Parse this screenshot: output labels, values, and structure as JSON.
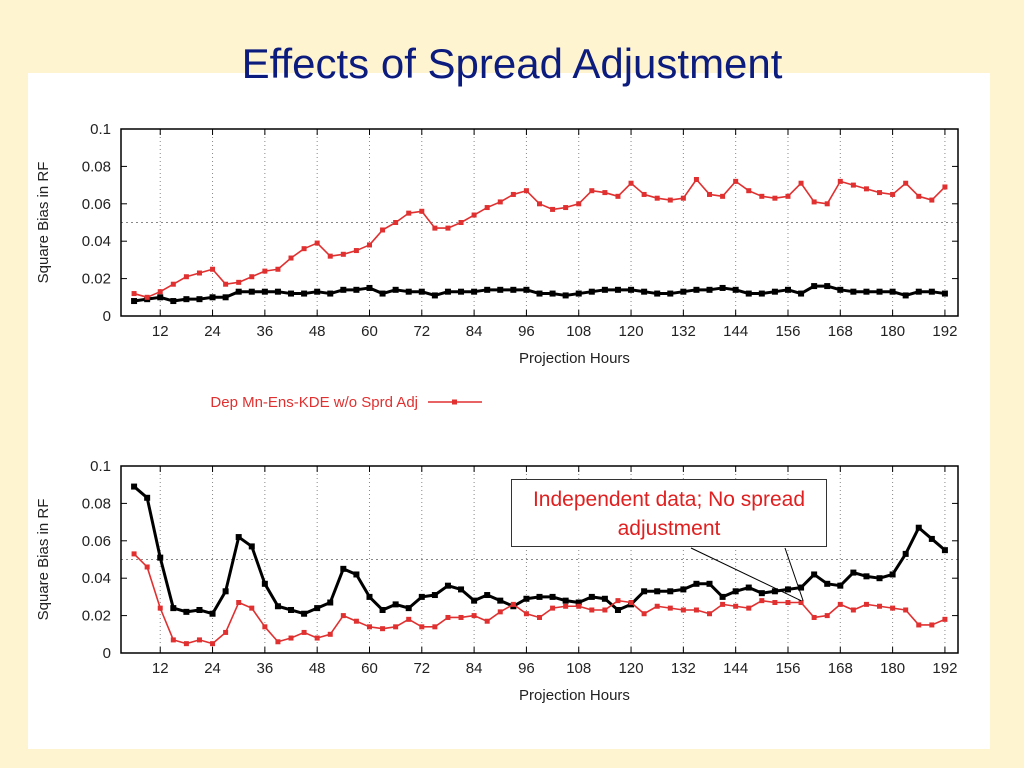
{
  "slide": {
    "title": "Effects of Spread Adjustment"
  },
  "colors": {
    "background": "#fff4d0",
    "title": "#0b1b7e",
    "black_series": "#000000",
    "red_series": "#e03030"
  },
  "chart_data": [
    {
      "type": "line",
      "xlabel": "Projection Hours",
      "ylabel": "Square Bias in RF",
      "xlim": [
        3,
        195
      ],
      "ylim": [
        0,
        0.1
      ],
      "xticks": [
        12,
        24,
        36,
        48,
        60,
        72,
        84,
        96,
        108,
        120,
        132,
        144,
        156,
        168,
        180,
        192
      ],
      "yticks": [
        0,
        0.02,
        0.04,
        0.06,
        0.08,
        0.1
      ],
      "ytick_labels": [
        "0",
        "0.02",
        "0.04",
        "0.06",
        "0.08",
        "0.1"
      ],
      "reference_line": 0.05,
      "legend_placement": "below",
      "series": [
        {
          "color": "#000000",
          "x": [
            6,
            9,
            12,
            15,
            18,
            21,
            24,
            27,
            30,
            33,
            36,
            39,
            42,
            45,
            48,
            51,
            54,
            57,
            60,
            63,
            66,
            69,
            72,
            75,
            78,
            81,
            84,
            87,
            90,
            93,
            96,
            99,
            102,
            105,
            108,
            111,
            114,
            117,
            120,
            123,
            126,
            129,
            132,
            135,
            138,
            141,
            144,
            147,
            150,
            153,
            156,
            159,
            162,
            165,
            168,
            171,
            174,
            177,
            180,
            183,
            186,
            189,
            192
          ],
          "y": [
            0.008,
            0.009,
            0.01,
            0.008,
            0.009,
            0.009,
            0.01,
            0.01,
            0.013,
            0.013,
            0.013,
            0.013,
            0.012,
            0.012,
            0.013,
            0.012,
            0.014,
            0.014,
            0.015,
            0.012,
            0.014,
            0.013,
            0.013,
            0.011,
            0.013,
            0.013,
            0.013,
            0.014,
            0.014,
            0.014,
            0.014,
            0.012,
            0.012,
            0.011,
            0.012,
            0.013,
            0.014,
            0.014,
            0.014,
            0.013,
            0.012,
            0.012,
            0.013,
            0.014,
            0.014,
            0.015,
            0.014,
            0.012,
            0.012,
            0.013,
            0.014,
            0.012,
            0.016,
            0.016,
            0.014,
            0.013,
            0.013,
            0.013,
            0.013,
            0.011,
            0.013,
            0.013,
            0.012
          ]
        },
        {
          "name": "Dep Mn-Ens-KDE w/o Sprd Adj",
          "color": "#e03030",
          "x": [
            6,
            9,
            12,
            15,
            18,
            21,
            24,
            27,
            30,
            33,
            36,
            39,
            42,
            45,
            48,
            51,
            54,
            57,
            60,
            63,
            66,
            69,
            72,
            75,
            78,
            81,
            84,
            87,
            90,
            93,
            96,
            99,
            102,
            105,
            108,
            111,
            114,
            117,
            120,
            123,
            126,
            129,
            132,
            135,
            138,
            141,
            144,
            147,
            150,
            153,
            156,
            159,
            162,
            165,
            168,
            171,
            174,
            177,
            180,
            183,
            186,
            189,
            192
          ],
          "y": [
            0.012,
            0.01,
            0.013,
            0.017,
            0.021,
            0.023,
            0.025,
            0.017,
            0.018,
            0.021,
            0.024,
            0.025,
            0.031,
            0.036,
            0.039,
            0.032,
            0.033,
            0.035,
            0.038,
            0.046,
            0.05,
            0.055,
            0.056,
            0.047,
            0.047,
            0.05,
            0.054,
            0.058,
            0.061,
            0.065,
            0.067,
            0.06,
            0.057,
            0.058,
            0.06,
            0.067,
            0.066,
            0.064,
            0.071,
            0.065,
            0.063,
            0.062,
            0.063,
            0.073,
            0.065,
            0.064,
            0.072,
            0.067,
            0.064,
            0.063,
            0.064,
            0.071,
            0.061,
            0.06,
            0.072,
            0.07,
            0.068,
            0.066,
            0.065,
            0.071,
            0.064,
            0.062,
            0.069
          ]
        }
      ]
    },
    {
      "type": "line",
      "xlabel": "Projection Hours",
      "ylabel": "Square Bias in RF",
      "xlim": [
        3,
        195
      ],
      "ylim": [
        0,
        0.1
      ],
      "xticks": [
        12,
        24,
        36,
        48,
        60,
        72,
        84,
        96,
        108,
        120,
        132,
        144,
        156,
        168,
        180,
        192
      ],
      "yticks": [
        0,
        0.02,
        0.04,
        0.06,
        0.08,
        0.1
      ],
      "ytick_labels": [
        "0",
        "0.02",
        "0.04",
        "0.06",
        "0.08",
        "0.1"
      ],
      "reference_line": 0.05,
      "annotation": {
        "text": "Independent data; No spread adjustment",
        "x": 159,
        "y": 0.028
      },
      "series": [
        {
          "color": "#000000",
          "x": [
            6,
            9,
            12,
            15,
            18,
            21,
            24,
            27,
            30,
            33,
            36,
            39,
            42,
            45,
            48,
            51,
            54,
            57,
            60,
            63,
            66,
            69,
            72,
            75,
            78,
            81,
            84,
            87,
            90,
            93,
            96,
            99,
            102,
            105,
            108,
            111,
            114,
            117,
            120,
            123,
            126,
            129,
            132,
            135,
            138,
            141,
            144,
            147,
            150,
            153,
            156,
            159,
            162,
            165,
            168,
            171,
            174,
            177,
            180,
            183,
            186,
            189,
            192
          ],
          "y": [
            0.089,
            0.083,
            0.051,
            0.024,
            0.022,
            0.023,
            0.021,
            0.033,
            0.062,
            0.057,
            0.037,
            0.025,
            0.023,
            0.021,
            0.024,
            0.027,
            0.045,
            0.042,
            0.03,
            0.023,
            0.026,
            0.024,
            0.03,
            0.031,
            0.036,
            0.034,
            0.028,
            0.031,
            0.028,
            0.025,
            0.029,
            0.03,
            0.03,
            0.028,
            0.027,
            0.03,
            0.029,
            0.023,
            0.026,
            0.033,
            0.033,
            0.033,
            0.034,
            0.037,
            0.037,
            0.03,
            0.033,
            0.035,
            0.032,
            0.033,
            0.034,
            0.035,
            0.042,
            0.037,
            0.036,
            0.043,
            0.041,
            0.04,
            0.042,
            0.053,
            0.067,
            0.061,
            0.055
          ]
        },
        {
          "color": "#e03030",
          "x": [
            6,
            9,
            12,
            15,
            18,
            21,
            24,
            27,
            30,
            33,
            36,
            39,
            42,
            45,
            48,
            51,
            54,
            57,
            60,
            63,
            66,
            69,
            72,
            75,
            78,
            81,
            84,
            87,
            90,
            93,
            96,
            99,
            102,
            105,
            108,
            111,
            114,
            117,
            120,
            123,
            126,
            129,
            132,
            135,
            138,
            141,
            144,
            147,
            150,
            153,
            156,
            159,
            162,
            165,
            168,
            171,
            174,
            177,
            180,
            183,
            186,
            189,
            192
          ],
          "y": [
            0.053,
            0.046,
            0.024,
            0.007,
            0.005,
            0.007,
            0.005,
            0.011,
            0.027,
            0.024,
            0.014,
            0.006,
            0.008,
            0.011,
            0.008,
            0.01,
            0.02,
            0.017,
            0.014,
            0.013,
            0.014,
            0.018,
            0.014,
            0.014,
            0.019,
            0.019,
            0.02,
            0.017,
            0.022,
            0.026,
            0.021,
            0.019,
            0.024,
            0.025,
            0.025,
            0.023,
            0.023,
            0.028,
            0.027,
            0.021,
            0.025,
            0.024,
            0.023,
            0.023,
            0.021,
            0.026,
            0.025,
            0.024,
            0.028,
            0.027,
            0.027,
            0.027,
            0.019,
            0.02,
            0.026,
            0.023,
            0.026,
            0.025,
            0.024,
            0.023,
            0.015,
            0.015,
            0.018
          ]
        }
      ]
    }
  ]
}
